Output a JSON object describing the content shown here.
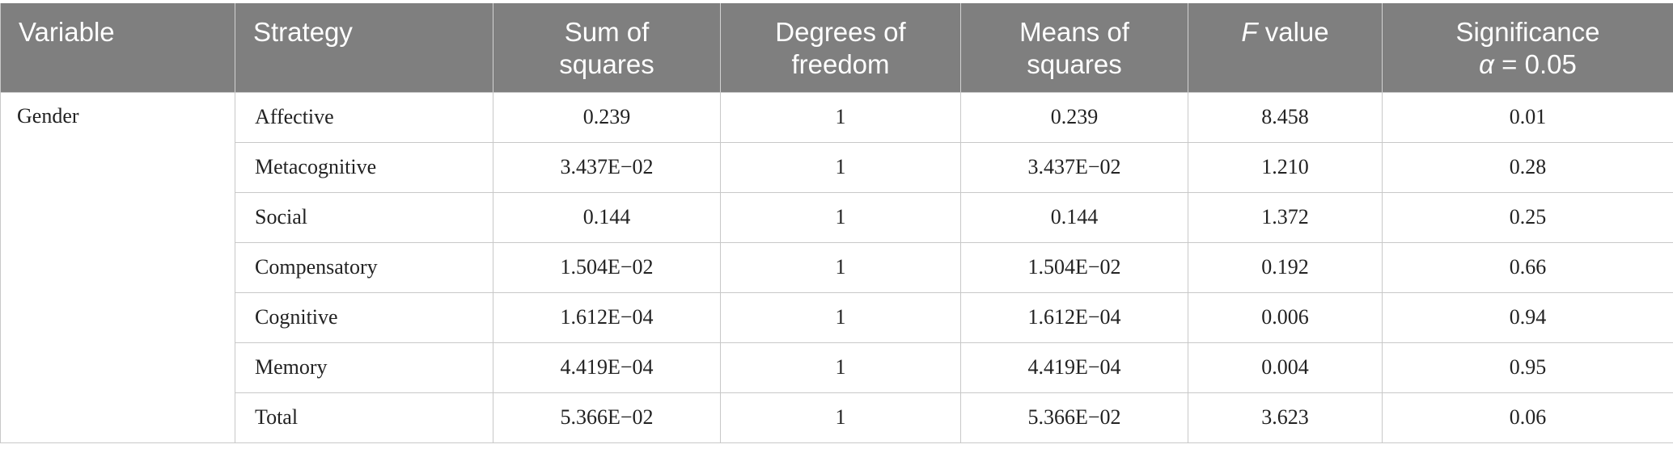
{
  "table": {
    "headers": {
      "variable": "Variable",
      "strategy": "Strategy",
      "sum_of_squares_line1": "Sum of",
      "sum_of_squares_line2": "squares",
      "degrees_line1": "Degrees of",
      "degrees_line2": "freedom",
      "means_line1": "Means of",
      "means_line2": "squares",
      "f_italic": "F",
      "f_rest": " value",
      "significance_line1": "Significance",
      "significance_alpha": "α",
      "significance_rest": " = 0.05"
    },
    "variable": "Gender",
    "rows": [
      {
        "strategy": "Affective",
        "sum_sq": "0.239",
        "df": "1",
        "mean_sq": "0.239",
        "f": "8.458",
        "sig": "0.01"
      },
      {
        "strategy": "Metacognitive",
        "sum_sq": "3.437E−02",
        "df": "1",
        "mean_sq": "3.437E−02",
        "f": "1.210",
        "sig": "0.28"
      },
      {
        "strategy": "Social",
        "sum_sq": "0.144",
        "df": "1",
        "mean_sq": "0.144",
        "f": "1.372",
        "sig": "0.25"
      },
      {
        "strategy": "Compensatory",
        "sum_sq": "1.504E−02",
        "df": "1",
        "mean_sq": "1.504E−02",
        "f": "0.192",
        "sig": "0.66"
      },
      {
        "strategy": "Cognitive",
        "sum_sq": "1.612E−04",
        "df": "1",
        "mean_sq": "1.612E−04",
        "f": "0.006",
        "sig": "0.94"
      },
      {
        "strategy": "Memory",
        "sum_sq": "4.419E−04",
        "df": "1",
        "mean_sq": "4.419E−04",
        "f": "0.004",
        "sig": "0.95"
      },
      {
        "strategy": "Total",
        "sum_sq": "5.366E−02",
        "df": "1",
        "mean_sq": "5.366E−02",
        "f": "3.623",
        "sig": "0.06"
      }
    ]
  }
}
